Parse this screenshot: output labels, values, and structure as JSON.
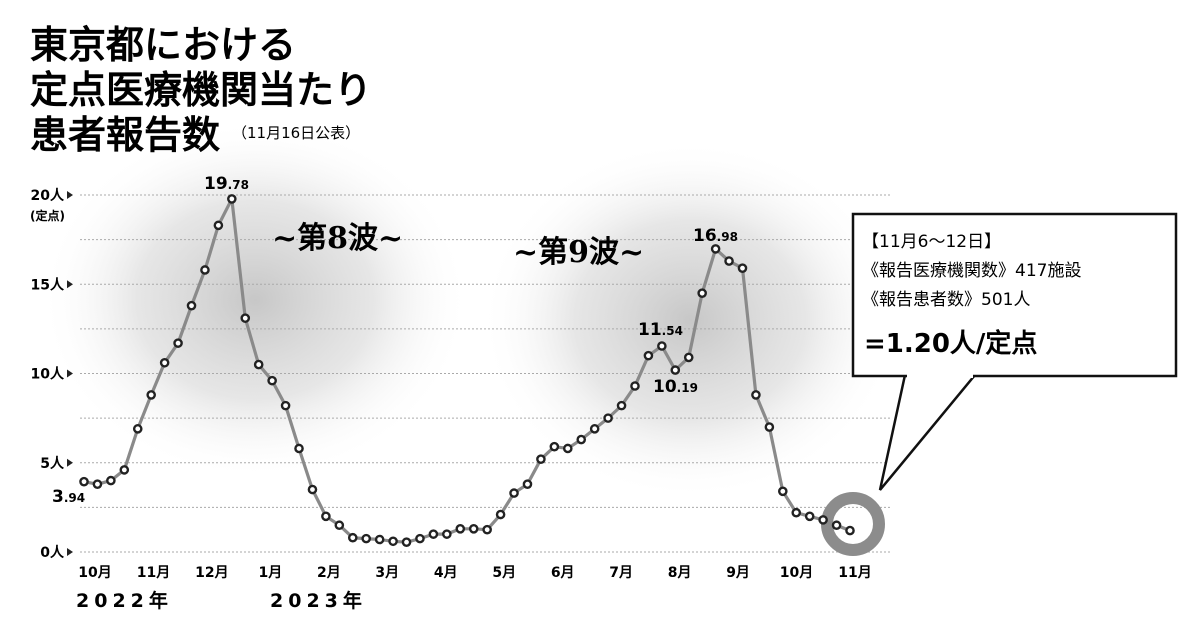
{
  "chart_data": {
    "type": "line",
    "title_lines": [
      "東京都における",
      "定点医療機関当たり",
      "患者報告数"
    ],
    "subtitle": "（11月16日公表）",
    "y_tick_labels": [
      "0人",
      "5人",
      "10人",
      "15人",
      "20人"
    ],
    "y_unit_label": "(定点)",
    "ylim": [
      0,
      20
    ],
    "x_tick_labels": [
      "10月",
      "11月",
      "12月",
      "1月",
      "2月",
      "3月",
      "4月",
      "5月",
      "6月",
      "7月",
      "8月",
      "9月",
      "10月",
      "11月"
    ],
    "year_labels": [
      "2022年",
      "2023年"
    ],
    "grid": true,
    "series": [
      {
        "values": [
          3.94,
          3.8,
          4.0,
          4.6,
          6.9,
          8.8,
          10.6,
          11.7,
          13.8,
          15.8,
          18.3,
          19.78,
          13.1,
          10.5,
          9.6,
          8.2,
          5.8,
          3.5,
          2.0,
          1.5,
          0.8,
          0.75,
          0.7,
          0.6,
          0.55,
          0.75,
          1.0,
          1.0,
          1.3,
          1.3,
          1.25,
          2.1,
          3.3,
          3.8,
          5.2,
          5.9,
          5.8,
          6.3,
          6.9,
          7.5,
          8.2,
          9.3,
          11.0,
          11.54,
          10.19,
          10.9,
          14.5,
          16.98,
          16.3,
          15.9,
          8.8,
          7.0,
          3.4,
          2.2,
          2.0,
          1.8,
          1.5,
          1.2
        ]
      }
    ],
    "annotations": {
      "start": {
        "int": "3",
        "dec": ".94"
      },
      "peak8": {
        "int": "19",
        "dec": ".78"
      },
      "local9": {
        "int": "11",
        "dec": ".54"
      },
      "dip9": {
        "int": "10",
        "dec": ".19"
      },
      "peak9": {
        "int": "16",
        "dec": ".98"
      }
    },
    "waves": [
      "~第8波~",
      "~第9波~"
    ]
  },
  "info_box": {
    "period": "【11月6～12日】",
    "institutions": "《報告医療機関数》417施設",
    "patients": "《報告患者数》501人",
    "result": "=1.20人/定点"
  },
  "colors": {
    "line": "#8a8a8a",
    "marker_fill": "#ffffff",
    "marker_stroke": "#222222",
    "grid": "#aaaaaa",
    "highlight_ring": "#8c8c8c",
    "text": "#1a1a1a"
  }
}
